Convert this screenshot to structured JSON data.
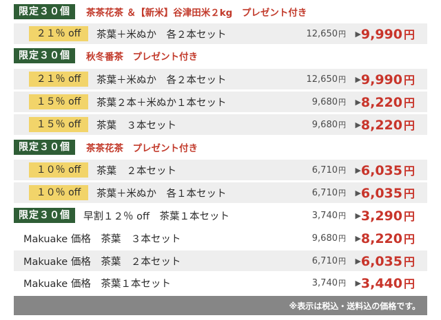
{
  "yen": "円",
  "limited_label": "限定３０個",
  "groups": [
    {
      "promo": "茶茶花茶 ＆【新米】谷津田米２kg　プレゼント付き",
      "rows": [
        {
          "off": "２１％ off",
          "label": "茶葉＋米ぬか　各２本セット",
          "old": "12,650",
          "new": "9,990"
        }
      ]
    },
    {
      "promo": "秋冬番茶　プレゼント付き",
      "rows": [
        {
          "off": "２１％ off",
          "label": "茶葉＋米ぬか　各２本セット",
          "old": "12,650",
          "new": "9,990"
        },
        {
          "off": "１５％ off",
          "label": "茶葉２本＋米ぬか１本セット",
          "old": "9,680",
          "new": "8,220"
        },
        {
          "off": "１５％ off",
          "label": "茶葉　３本セット",
          "old": "9,680",
          "new": "8,220"
        }
      ]
    },
    {
      "promo": "茶茶花茶　プレゼント付き",
      "rows": [
        {
          "off": "１０％ off",
          "label": "茶葉　２本セット",
          "old": "6,710",
          "new": "6,035"
        },
        {
          "off": "１０％ off",
          "label": "茶葉＋米ぬか　各１本セット",
          "old": "6,710",
          "new": "6,035"
        }
      ]
    }
  ],
  "early": {
    "label": "早割１２％ off　茶葉１本セット",
    "old": "3,740",
    "new": "3,290"
  },
  "makuake": [
    {
      "label": "Makuake 価格　茶葉　３本セット",
      "old": "9,680",
      "new": "8,220"
    },
    {
      "label": "Makuake 価格　茶葉　２本セット",
      "old": "6,710",
      "new": "6,035"
    },
    {
      "label": "Makuake 価格　茶葉１本セット",
      "old": "3,740",
      "new": "3,440"
    }
  ],
  "footer_note": "※表示は税込・送料込の価格です。"
}
